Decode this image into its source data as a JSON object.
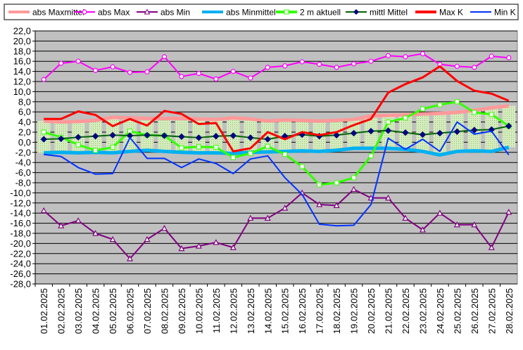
{
  "colors": {
    "background": "#ffffff",
    "plot_area": "#c0c0c0",
    "gridline": "#000000",
    "range_band": "#d6ecc0"
  },
  "chart_data": {
    "type": "line",
    "legend_position": "top",
    "grid": true,
    "ylim": [
      -28,
      22
    ],
    "yticks": [
      22,
      20,
      18,
      16,
      14,
      12,
      10,
      8,
      6,
      4,
      2,
      0,
      -2,
      -4,
      -6,
      -8,
      -10,
      -12,
      -14,
      -16,
      -18,
      -20,
      -22,
      -24,
      -26,
      -28
    ],
    "ytick_labels": [
      "22,0",
      "20,0",
      "18,0",
      "16,0",
      "14,0",
      "12,0",
      "10,0",
      "8,0",
      "6,0",
      "4,0",
      "2,0",
      "0,0",
      "-2,0",
      "-4,0",
      "-6,0",
      "-8,0",
      "-10,0",
      "-12,0",
      "-14,0",
      "-16,0",
      "-18,0",
      "-20,0",
      "-22,0",
      "-24,0",
      "-26,0",
      "-28,0"
    ],
    "categories": [
      "01.02.2025",
      "02.02.2025",
      "03.02.2025",
      "04.02.2025",
      "05.02.2025",
      "06.02.2025",
      "07.02.2025",
      "08.02.2025",
      "09.02.2025",
      "10.02.2025",
      "11.02.2025",
      "12.02.2025",
      "13.02.2025",
      "14.02.2025",
      "15.02.2025",
      "16.02.2025",
      "17.02.2025",
      "18.02.2025",
      "19.02.2025",
      "20.02.2025",
      "21.02.2025",
      "22.02.2025",
      "23.02.2025",
      "24.02.2025",
      "25.02.2025",
      "26.02.2025",
      "27.02.2025",
      "28.02.2025"
    ],
    "series": [
      {
        "name": "abs Maxmittel",
        "color": "#ff9999",
        "style": "thick",
        "marker": "none",
        "values": [
          4.2,
          4.0,
          4.1,
          4.3,
          4.9,
          4.8,
          4.7,
          4.7,
          4.7,
          4.6,
          4.5,
          4.8,
          4.6,
          4.2,
          4.4,
          4.3,
          4.2,
          4.3,
          4.5,
          5.2,
          5.3,
          5.4,
          5.6,
          5.7,
          5.9,
          6.3,
          6.8,
          7.2
        ]
      },
      {
        "name": "abs Max",
        "color": "#ff00ff",
        "style": "line",
        "marker": "circle",
        "values": [
          12.4,
          15.6,
          16.0,
          14.2,
          14.9,
          13.8,
          13.9,
          16.9,
          13.0,
          13.6,
          12.5,
          14.0,
          12.7,
          14.8,
          15.1,
          15.9,
          15.4,
          14.8,
          15.5,
          16.0,
          17.1,
          16.9,
          17.5,
          15.4,
          15.0,
          14.8,
          17.0,
          16.7
        ]
      },
      {
        "name": "abs Min",
        "color": "#800080",
        "style": "line",
        "marker": "triangle",
        "values": [
          -13.5,
          -16.5,
          -15.5,
          -18.0,
          -19.2,
          -23.0,
          -19.2,
          -17.0,
          -21.0,
          -20.5,
          -19.8,
          -20.8,
          -15.0,
          -15.0,
          -13.0,
          -10.0,
          -12.3,
          -12.5,
          -9.3,
          -11.0,
          -11.0,
          -15.0,
          -17.3,
          -14.0,
          -16.3,
          -16.3,
          -20.8,
          -13.8
        ]
      },
      {
        "name": "abs Minmittel",
        "color": "#00b0f0",
        "style": "thick",
        "marker": "none",
        "values": [
          -2.1,
          -2.0,
          -2.1,
          -2.0,
          -2.1,
          -1.8,
          -1.6,
          -1.8,
          -2.0,
          -2.1,
          -2.1,
          -2.2,
          -2.0,
          -1.9,
          -1.8,
          -1.7,
          -1.8,
          -1.6,
          -1.2,
          -1.2,
          -1.2,
          -1.4,
          -1.8,
          -2.5,
          -1.8,
          -1.7,
          -1.8,
          -1.0
        ]
      },
      {
        "name": "2 m aktuell",
        "color": "#33ff00",
        "style": "thick",
        "marker": "square",
        "values": [
          2.0,
          1.0,
          -0.5,
          -1.6,
          -1.0,
          2.2,
          1.4,
          1.3,
          -1.1,
          -0.9,
          -1.0,
          -3.0,
          -2.2,
          -0.8,
          -2.4,
          -4.8,
          -8.4,
          -8.0,
          -7.0,
          -2.7,
          4.0,
          4.8,
          6.6,
          7.4,
          8.0,
          5.9,
          5.5,
          3.2
        ]
      },
      {
        "name": "mittl Mittel",
        "color": "#006400",
        "style": "line",
        "marker": "diamond",
        "values": [
          0.6,
          0.7,
          1.0,
          1.2,
          1.4,
          1.3,
          1.4,
          1.3,
          1.1,
          0.9,
          1.2,
          1.3,
          0.9,
          0.6,
          1.2,
          1.5,
          1.2,
          1.4,
          1.8,
          2.2,
          2.3,
          1.9,
          1.5,
          1.8,
          2.1,
          2.4,
          2.5,
          3.2
        ]
      },
      {
        "name": "Max K",
        "color": "#ff0000",
        "style": "thick",
        "marker": "none",
        "values": [
          4.6,
          4.6,
          6.1,
          5.4,
          3.2,
          4.6,
          3.3,
          6.2,
          5.6,
          3.6,
          3.8,
          -1.8,
          -1.2,
          2.0,
          0.6,
          2.0,
          1.4,
          2.0,
          3.4,
          4.6,
          9.8,
          11.5,
          12.8,
          15.0,
          12.1,
          10.2,
          9.6,
          8.2
        ]
      },
      {
        "name": "Min K",
        "color": "#0033ff",
        "style": "line",
        "marker": "none",
        "values": [
          -2.4,
          -2.8,
          -5.0,
          -6.3,
          -6.2,
          0.9,
          -3.2,
          -3.2,
          -5.0,
          -3.3,
          -4.2,
          -6.2,
          -3.3,
          -2.7,
          -7.0,
          -10.3,
          -16.2,
          -16.5,
          -16.4,
          -12.3,
          0.8,
          -1.4,
          0.6,
          -1.8,
          4.0,
          1.6,
          2.2,
          -2.5
        ]
      }
    ]
  }
}
